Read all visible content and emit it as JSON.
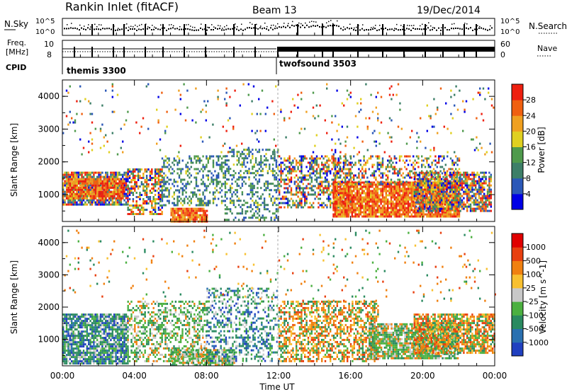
{
  "header": {
    "station": "Rankin Inlet (fitACF)",
    "beam": "Beam 13",
    "date": "19/Dec/2014"
  },
  "noise_panel": {
    "left_label": "N.Sky",
    "left_ticks": [
      "10^5",
      "10^0"
    ],
    "right_label": "N.Search",
    "right_ticks": [
      "10^5",
      "10^0"
    ]
  },
  "freq_panel": {
    "left_label_1": "Freq.",
    "left_label_2": "[MHz]",
    "left_ticks": [
      "10",
      "8"
    ],
    "right_label": "Nave",
    "right_ticks": [
      "60",
      "0"
    ]
  },
  "cpid": {
    "label": "CPID",
    "modes": [
      {
        "name": "themis 3300"
      },
      {
        "name": "twofsound 3503"
      }
    ]
  },
  "chart_data": [
    {
      "type": "heatmap",
      "name": "power",
      "ylabel": "Slant Range [km]",
      "y_ticks": [
        "1000",
        "2000",
        "3000",
        "4000"
      ],
      "ylim": [
        180,
        4500
      ],
      "xlim": [
        "00:00",
        "24:00"
      ],
      "colorbar": {
        "label": "Power [dB]",
        "ticks": [
          "4",
          "8",
          "12",
          "16",
          "20",
          "24",
          "28"
        ],
        "range": [
          0,
          30
        ],
        "colors": [
          "#0000e6",
          "#2b58b8",
          "#3d7f68",
          "#4f9a4c",
          "#e0d020",
          "#f0a020",
          "#f06010",
          "#ee2010"
        ]
      }
    },
    {
      "type": "heatmap",
      "name": "velocity",
      "ylabel": "Slant Range [km]",
      "y_ticks": [
        "1000",
        "2000",
        "3000",
        "4000"
      ],
      "ylim": [
        180,
        4500
      ],
      "xlim": [
        "00:00",
        "24:00"
      ],
      "colorbar": {
        "label": "Velocity [m s^-1]",
        "ticks": [
          "1000",
          "500",
          "100",
          "25",
          "-25",
          "-100",
          "-500",
          "-1000"
        ],
        "colors": [
          "#2040c0",
          "#2a70b0",
          "#2a8a60",
          "#4bb040",
          "#c8c8c8",
          "#f8c030",
          "#f08010",
          "#e84010",
          "#e00000"
        ]
      }
    }
  ],
  "x_axis": {
    "ticks": [
      "00:00",
      "04:00",
      "08:00",
      "12:00",
      "16:00",
      "20:00",
      "00:00"
    ],
    "label": "Time UT"
  }
}
